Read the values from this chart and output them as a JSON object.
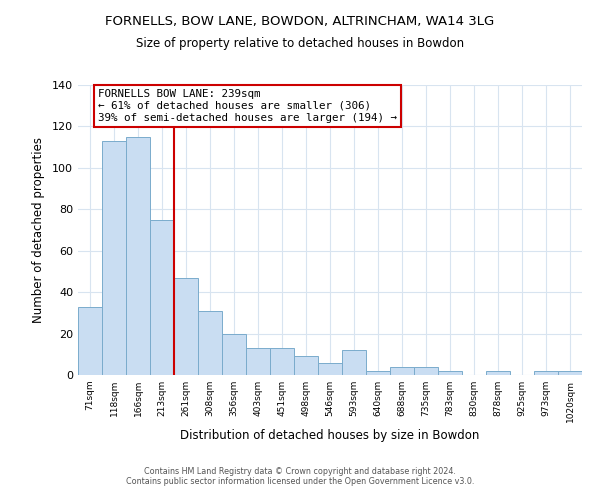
{
  "title": "FORNELLS, BOW LANE, BOWDON, ALTRINCHAM, WA14 3LG",
  "subtitle": "Size of property relative to detached houses in Bowdon",
  "xlabel": "Distribution of detached houses by size in Bowdon",
  "ylabel": "Number of detached properties",
  "categories": [
    "71sqm",
    "118sqm",
    "166sqm",
    "213sqm",
    "261sqm",
    "308sqm",
    "356sqm",
    "403sqm",
    "451sqm",
    "498sqm",
    "546sqm",
    "593sqm",
    "640sqm",
    "688sqm",
    "735sqm",
    "783sqm",
    "830sqm",
    "878sqm",
    "925sqm",
    "973sqm",
    "1020sqm"
  ],
  "values": [
    33,
    113,
    115,
    75,
    47,
    31,
    20,
    13,
    13,
    9,
    6,
    12,
    2,
    4,
    4,
    2,
    0,
    2,
    0,
    2,
    2
  ],
  "bar_color": "#c9ddf2",
  "bar_edge_color": "#7aabcc",
  "vline_x": 3.5,
  "vline_color": "#cc0000",
  "annotation_title": "FORNELLS BOW LANE: 239sqm",
  "annotation_line1": "← 61% of detached houses are smaller (306)",
  "annotation_line2": "39% of semi-detached houses are larger (194) →",
  "annotation_box_color": "#ffffff",
  "annotation_box_edge": "#cc0000",
  "ylim": [
    0,
    140
  ],
  "yticks": [
    0,
    20,
    40,
    60,
    80,
    100,
    120,
    140
  ],
  "footer1": "Contains HM Land Registry data © Crown copyright and database right 2024.",
  "footer2": "Contains public sector information licensed under the Open Government Licence v3.0.",
  "background_color": "#ffffff",
  "grid_color": "#d8e4f0"
}
